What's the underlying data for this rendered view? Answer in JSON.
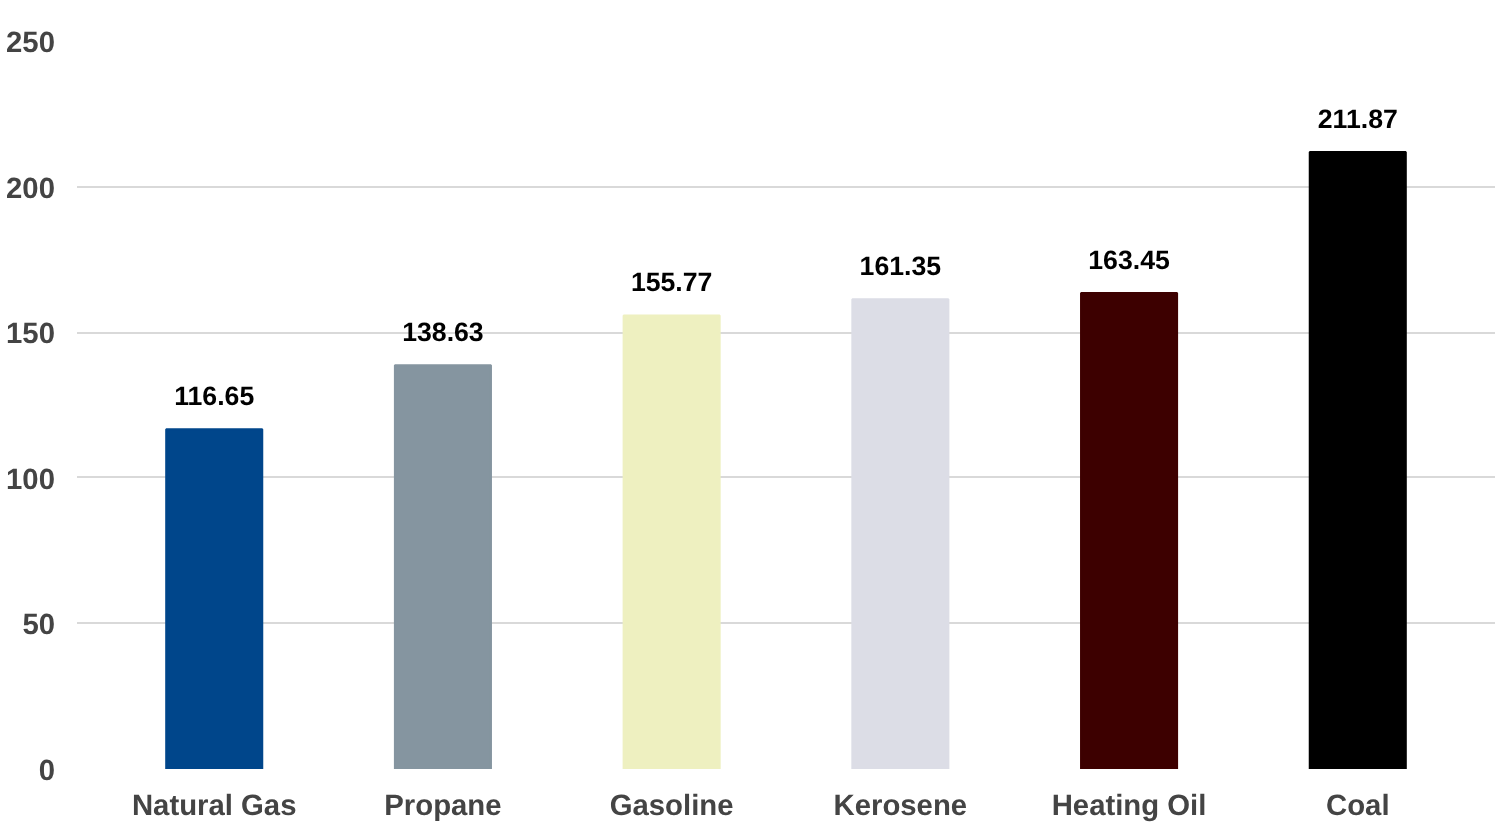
{
  "chart_data": {
    "type": "bar",
    "categories": [
      "Natural Gas",
      "Propane",
      "Gasoline",
      "Kerosene",
      "Heating Oil",
      "Coal"
    ],
    "values": [
      116.65,
      138.63,
      155.77,
      161.35,
      163.45,
      211.87
    ],
    "colors": [
      "#00468b",
      "#8595a0",
      "#eef0c0",
      "#dcdde6",
      "#3d0000",
      "#000000"
    ],
    "ylim": [
      0,
      250
    ],
    "yticks": [
      0,
      50,
      100,
      150,
      200,
      250
    ],
    "grid": "y",
    "data_labels": true
  }
}
